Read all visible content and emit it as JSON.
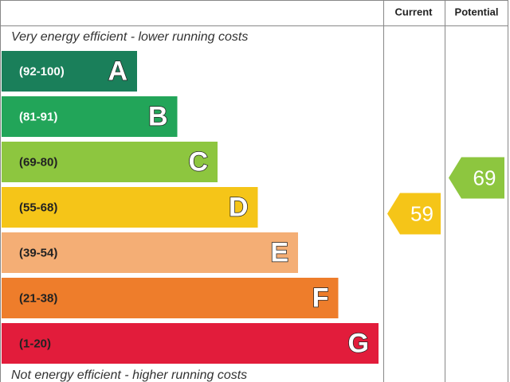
{
  "header": {
    "current": "Current",
    "potential": "Potential"
  },
  "top_note": "Very energy efficient - lower running costs",
  "bottom_note": "Not energy efficient - higher running costs",
  "bands": [
    {
      "range": "(92-100)",
      "letter": "A",
      "color": "#1a7f5a"
    },
    {
      "range": "(81-91)",
      "letter": "B",
      "color": "#22a559"
    },
    {
      "range": "(69-80)",
      "letter": "C",
      "color": "#8dc63f"
    },
    {
      "range": "(55-68)",
      "letter": "D",
      "color": "#f5c518"
    },
    {
      "range": "(39-54)",
      "letter": "E",
      "color": "#f4ae75"
    },
    {
      "range": "(21-38)",
      "letter": "F",
      "color": "#ee7d2b"
    },
    {
      "range": "(1-20)",
      "letter": "G",
      "color": "#e21c3b"
    }
  ],
  "current": {
    "value": 59,
    "color": "#f5c518"
  },
  "potential": {
    "value": 69,
    "color": "#8dc63f"
  }
}
